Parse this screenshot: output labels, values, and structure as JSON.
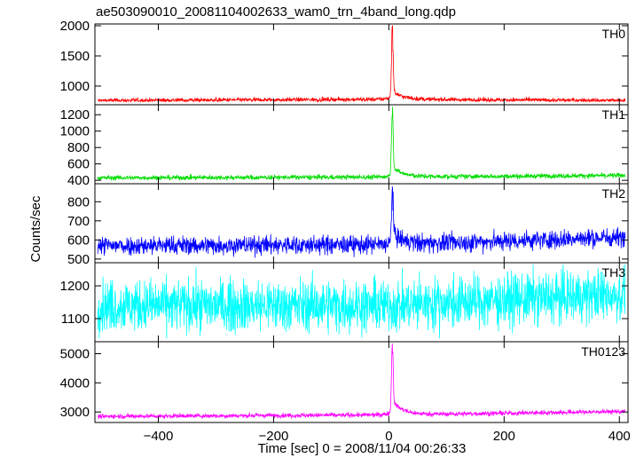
{
  "chart_data": {
    "type": "line",
    "title": "ae503090010_20081104002633_wam0_trn_4band_long.qdp",
    "xlabel": "Time [sec] 0 = 2008/11/04 00:26:33",
    "ylabel": "Counts/sec",
    "xlim": [
      -510,
      415
    ],
    "x_ticks": [
      -400,
      -200,
      0,
      200,
      400
    ],
    "x_tick_labels": [
      "−400",
      "−200",
      "0",
      "200",
      "400"
    ],
    "panels": [
      {
        "name": "TH0",
        "color": "#ff0000",
        "ylim": [
          720,
          2000
        ],
        "y_ticks": [
          1000,
          1500,
          2000
        ],
        "baseline": [
          [
            -510,
            760
          ],
          [
            0,
            780
          ],
          [
            415,
            760
          ]
        ],
        "noise": 18,
        "peak": {
          "x": 6,
          "value": 2000,
          "pre": 880,
          "post": 950
        }
      },
      {
        "name": "TH1",
        "color": "#00dd00",
        "ylim": [
          380,
          1300
        ],
        "y_ticks": [
          400,
          600,
          800,
          1000,
          1200
        ],
        "baseline": [
          [
            -510,
            430
          ],
          [
            0,
            440
          ],
          [
            415,
            460
          ]
        ],
        "noise": 15,
        "peak": {
          "x": 6,
          "value": 1300,
          "pre": 520,
          "post": 600
        }
      },
      {
        "name": "TH2",
        "color": "#0000ff",
        "ylim": [
          490,
          885
        ],
        "y_ticks": [
          500,
          600,
          700,
          800
        ],
        "baseline": [
          [
            -510,
            570
          ],
          [
            0,
            575
          ],
          [
            415,
            615
          ]
        ],
        "noise": 25,
        "peak": {
          "x": 6,
          "value": 885,
          "pre": 600,
          "post": 650
        }
      },
      {
        "name": "TH3",
        "color": "#00ffff",
        "ylim": [
          1035,
          1265
        ],
        "y_ticks": [
          1100,
          1200
        ],
        "baseline": [
          [
            -510,
            1140
          ],
          [
            0,
            1140
          ],
          [
            415,
            1175
          ]
        ],
        "noise": 40,
        "peak": null
      },
      {
        "name": "TH0123",
        "color": "#ff00ff",
        "ylim": [
          2700,
          5350
        ],
        "y_ticks": [
          3000,
          4000,
          5000
        ],
        "baseline": [
          [
            -510,
            2850
          ],
          [
            0,
            2900
          ],
          [
            415,
            3020
          ]
        ],
        "noise": 40,
        "peak": {
          "x": 6,
          "value": 5300,
          "pre": 3150,
          "post": 3500
        }
      }
    ],
    "grid": false,
    "legend": "none"
  }
}
